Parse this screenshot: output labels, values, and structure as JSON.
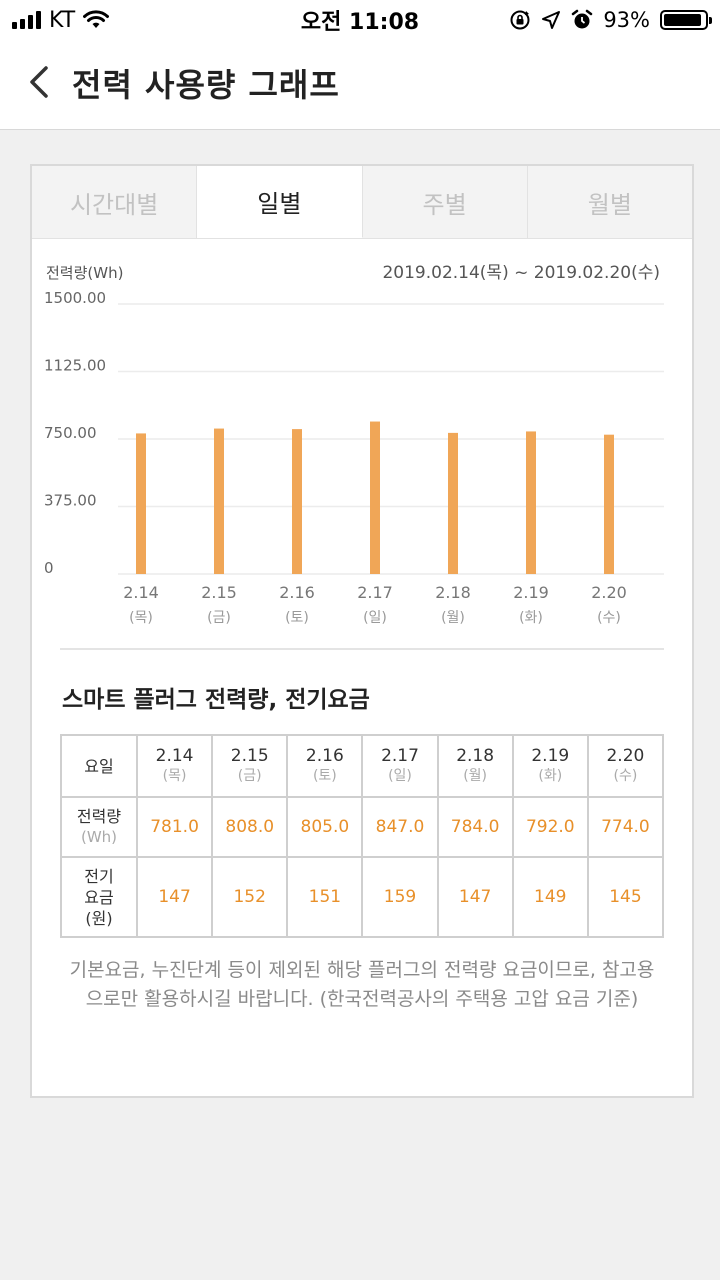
{
  "status_bar": {
    "carrier": "KT",
    "time": "오전 11:08",
    "battery": "93%",
    "battery_level": 0.93,
    "icons": [
      "signal-icon",
      "wifi-icon",
      "rotation-lock-icon",
      "location-icon",
      "alarm-icon",
      "battery-icon"
    ]
  },
  "nav": {
    "title": "전력 사용량 그래프",
    "back_icon": "chevron-left-icon"
  },
  "tabs": [
    {
      "label": "시간대별",
      "active": false
    },
    {
      "label": "일별",
      "active": true
    },
    {
      "label": "주별",
      "active": false
    },
    {
      "label": "월별",
      "active": false
    }
  ],
  "chart_data": {
    "type": "bar",
    "ylabel": "전력량(Wh)",
    "date_range": "2019.02.14(목) ~ 2019.02.20(수)",
    "yticks": [
      "0",
      "375.00",
      "750.00",
      "1125.00",
      "1500.00"
    ],
    "ylim": [
      0,
      1500
    ],
    "categories": [
      "2.14",
      "2.15",
      "2.16",
      "2.17",
      "2.18",
      "2.19",
      "2.20"
    ],
    "weekdays": [
      "(목)",
      "(금)",
      "(토)",
      "(일)",
      "(월)",
      "(화)",
      "(수)"
    ],
    "values": [
      781.0,
      808.0,
      805.0,
      847.0,
      784.0,
      792.0,
      774.0
    ],
    "bar_color": "#f0a657",
    "grid": true
  },
  "section": {
    "title": "스마트 플러그 전력량, 전기요금"
  },
  "table": {
    "header_label": "요일",
    "power_label": "전력량",
    "power_unit": "(Wh)",
    "fee_label_1": "전기",
    "fee_label_2": "요금",
    "fee_unit": "(원)",
    "days": [
      {
        "date": "2.14",
        "weekday": "(목)",
        "power": "781.0",
        "fee": "147"
      },
      {
        "date": "2.15",
        "weekday": "(금)",
        "power": "808.0",
        "fee": "152"
      },
      {
        "date": "2.16",
        "weekday": "(토)",
        "power": "805.0",
        "fee": "151"
      },
      {
        "date": "2.17",
        "weekday": "(일)",
        "power": "847.0",
        "fee": "159"
      },
      {
        "date": "2.18",
        "weekday": "(월)",
        "power": "784.0",
        "fee": "147"
      },
      {
        "date": "2.19",
        "weekday": "(화)",
        "power": "792.0",
        "fee": "149"
      },
      {
        "date": "2.20",
        "weekday": "(수)",
        "power": "774.0",
        "fee": "145"
      }
    ],
    "value_color": "#e8902a"
  },
  "notice": "기본요금, 누진단계 등이 제외된 해당 플러그의 전력량 요금이므로, 참고용으로만 활용하시길 바랍니다. (한국전력공사의 주택용 고압 요금 기준)"
}
